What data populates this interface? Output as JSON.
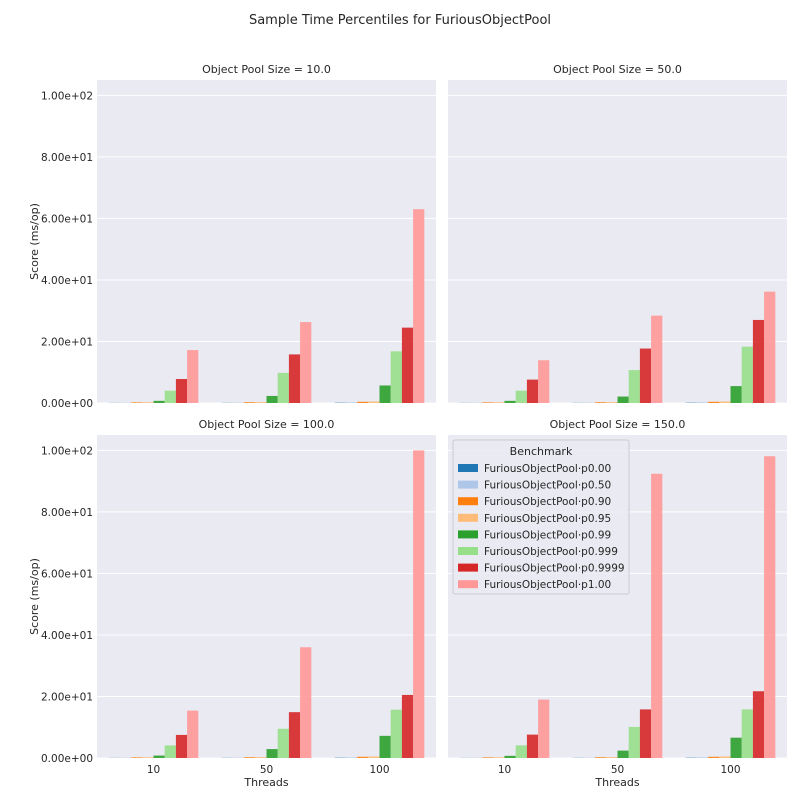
{
  "chart_data": {
    "type": "bar",
    "title": "Sample Time Percentiles for FuriousObjectPool",
    "xlabel": "Threads",
    "ylabel": "Score (ms/op)",
    "ylim": [
      0,
      105
    ],
    "yticks": [
      0,
      20,
      40,
      60,
      80,
      100
    ],
    "ytick_labels": [
      "0.00e+00",
      "2.00e+01",
      "4.00e+01",
      "6.00e+01",
      "8.00e+01",
      "1.00e+02"
    ],
    "categories": [
      "10",
      "50",
      "100"
    ],
    "grid": true,
    "legend": {
      "title": "Benchmark",
      "placement": "top-left of bottom-right panel"
    },
    "series_meta": [
      {
        "name": "FuriousObjectPool·p0.00",
        "color": "#1f77b4"
      },
      {
        "name": "FuriousObjectPool·p0.50",
        "color": "#aec7e8"
      },
      {
        "name": "FuriousObjectPool·p0.90",
        "color": "#ff7f0e"
      },
      {
        "name": "FuriousObjectPool·p0.95",
        "color": "#ffbb78"
      },
      {
        "name": "FuriousObjectPool·p0.99",
        "color": "#2ca02c"
      },
      {
        "name": "FuriousObjectPool·p0.999",
        "color": "#98df8a"
      },
      {
        "name": "FuriousObjectPool·p0.9999",
        "color": "#d62728"
      },
      {
        "name": "FuriousObjectPool·p1.00",
        "color": "#ff9896"
      }
    ],
    "panels": [
      {
        "title": "Object Pool Size = 10.0",
        "series": [
          [
            0.05,
            0.06,
            0.1
          ],
          [
            0.1,
            0.12,
            0.2
          ],
          [
            0.2,
            0.25,
            0.4
          ],
          [
            0.25,
            0.3,
            0.5
          ],
          [
            0.7,
            2.3,
            5.7
          ],
          [
            4.0,
            9.8,
            16.8
          ],
          [
            7.8,
            15.8,
            24.5
          ],
          [
            17.2,
            26.3,
            63.0
          ]
        ]
      },
      {
        "title": "Object Pool Size = 50.0",
        "series": [
          [
            0.05,
            0.06,
            0.1
          ],
          [
            0.1,
            0.12,
            0.2
          ],
          [
            0.2,
            0.25,
            0.4
          ],
          [
            0.25,
            0.3,
            0.5
          ],
          [
            0.7,
            2.1,
            5.5
          ],
          [
            4.0,
            10.7,
            18.3
          ],
          [
            7.6,
            17.7,
            27.0
          ],
          [
            13.9,
            28.4,
            36.2
          ]
        ]
      },
      {
        "title": "Object Pool Size = 100.0",
        "series": [
          [
            0.05,
            0.06,
            0.1
          ],
          [
            0.1,
            0.12,
            0.2
          ],
          [
            0.2,
            0.25,
            0.4
          ],
          [
            0.25,
            0.3,
            0.5
          ],
          [
            0.8,
            2.9,
            7.2
          ],
          [
            4.1,
            9.5,
            15.7
          ],
          [
            7.5,
            14.9,
            20.5
          ],
          [
            15.4,
            36.0,
            100.0
          ]
        ]
      },
      {
        "title": "Object Pool Size = 150.0",
        "series": [
          [
            0.05,
            0.06,
            0.1
          ],
          [
            0.1,
            0.12,
            0.2
          ],
          [
            0.2,
            0.25,
            0.4
          ],
          [
            0.25,
            0.3,
            0.5
          ],
          [
            0.7,
            2.4,
            6.6
          ],
          [
            4.1,
            10.1,
            15.8
          ],
          [
            7.6,
            15.8,
            21.7
          ],
          [
            19.0,
            92.4,
            98.1
          ]
        ]
      }
    ]
  }
}
